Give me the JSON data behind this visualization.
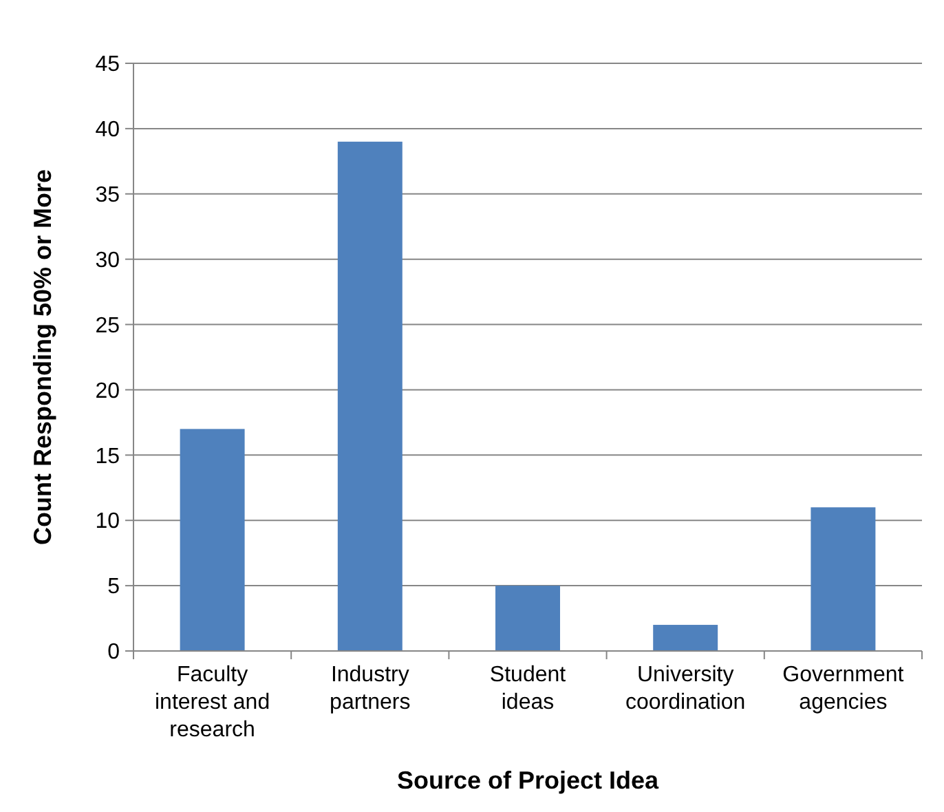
{
  "chart_data": {
    "type": "bar",
    "xlabel": "Source of Project Idea",
    "ylabel": "Count Responding 50% or More",
    "categories": [
      "Faculty interest and research",
      "Industry partners",
      "Student ideas",
      "University coordination",
      "Government agencies"
    ],
    "values": [
      17,
      39,
      5,
      2,
      11
    ],
    "color": "#4f81bd",
    "ylim": [
      0,
      45
    ],
    "yticks": [
      0,
      5,
      10,
      15,
      20,
      25,
      30,
      35,
      40,
      45
    ],
    "grid": "y"
  }
}
